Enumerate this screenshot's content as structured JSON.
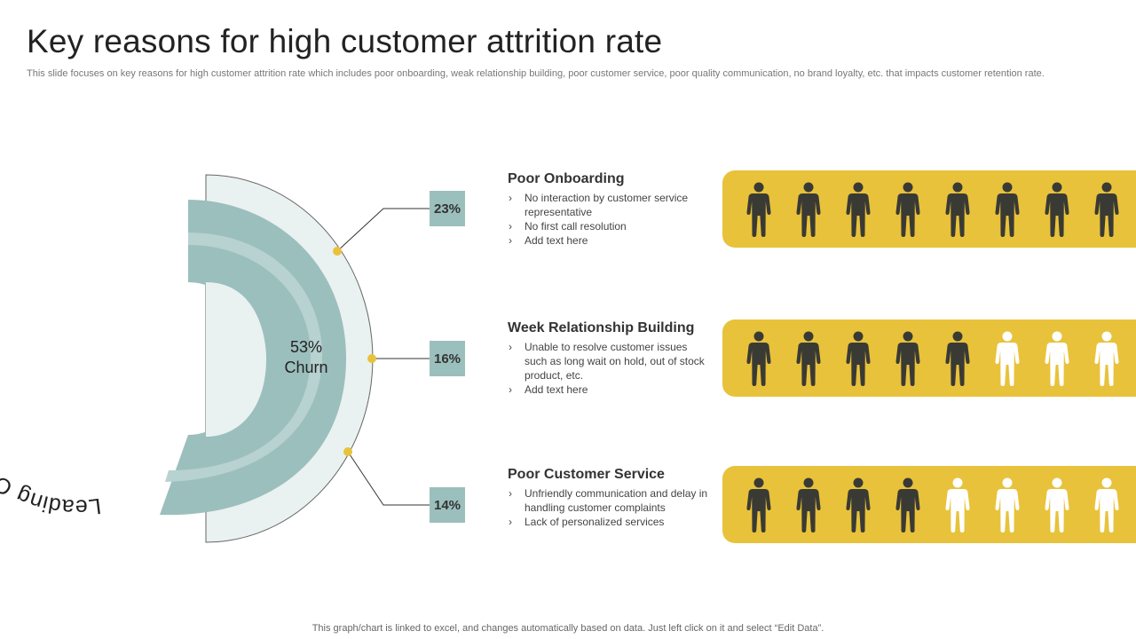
{
  "header": {
    "title": "Key reasons for high customer attrition rate",
    "subtitle": "This slide focuses on key reasons for high customer attrition rate which includes poor onboarding, weak relationship building, poor customer service, poor quality communication, no brand loyalty, etc. that impacts customer retention rate."
  },
  "diagram": {
    "curved_label": "Leading Causes of Churn",
    "center_value": "53%",
    "center_label": "Churn",
    "colors": {
      "teal": "#9bbfbd",
      "light": "#eaf1f1",
      "accent": "#e8c23a",
      "dark_person": "#3a3a35",
      "light_person": "#ffffff"
    }
  },
  "reasons": [
    {
      "percent": "23%",
      "title": "Poor Onboarding",
      "bullets": [
        "No interaction by customer service  representative",
        "No first call resolution",
        "Add text here"
      ],
      "people_total": 8,
      "people_dark": 8
    },
    {
      "percent": "16%",
      "title": "Week Relationship Building",
      "bullets": [
        "Unable  to resolve  customer issues such as long wait on hold, out of stock product, etc.",
        "Add text here"
      ],
      "people_total": 8,
      "people_dark": 5
    },
    {
      "percent": "14%",
      "title": "Poor Customer Service",
      "bullets": [
        "Unfriendly  communication and delay in handling customer complaints",
        "Lack of personalized  services"
      ],
      "people_total": 8,
      "people_dark": 4
    }
  ],
  "footer": {
    "note": "This graph/chart is linked to excel,  and changes automatically based on data. Just left click on it and select “Edit Data”."
  }
}
